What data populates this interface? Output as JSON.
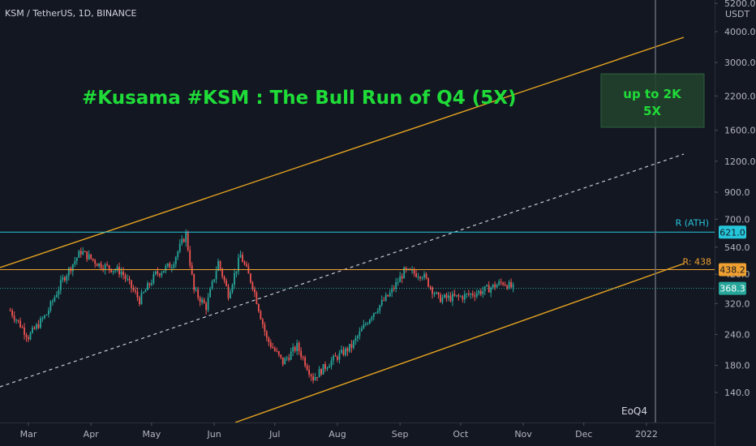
{
  "header": {
    "symbol": "KSM / TetherUS, 1D, BINANCE"
  },
  "chart_data": {
    "type": "candlestick",
    "title": "#Kusama #KSM : The Bull Run of Q4 (5X)",
    "currency_label": "USDT",
    "y_scale": "log",
    "ylim": [
      112,
      5600
    ],
    "y_ticks": [
      "5200.0",
      "4000.0",
      "3000.0",
      "2200.0",
      "1600.0",
      "1200.0",
      "900.0",
      "700.0",
      "540.0",
      "420.0",
      "320.0",
      "240.0",
      "180.0",
      "140.0"
    ],
    "x_ticks": [
      "Mar",
      "Apr",
      "May",
      "Jun",
      "Jul",
      "Aug",
      "Sep",
      "Oct",
      "Nov",
      "Dec",
      "2022"
    ],
    "price_labels": {
      "ath": "621.0",
      "resistance": "438.2",
      "last": "368.3"
    },
    "annotations": {
      "ath_label": "R (ATH)",
      "resistance_label": "R: 438",
      "target_line1": "up to 2K",
      "target_line2": "5X",
      "marker": "EoQ4"
    },
    "price_path": [
      {
        "date": "2021-02-20",
        "price": 300
      },
      {
        "date": "2021-03-01",
        "price": 235
      },
      {
        "date": "2021-03-10",
        "price": 290
      },
      {
        "date": "2021-03-18",
        "price": 400
      },
      {
        "date": "2021-03-27",
        "price": 520
      },
      {
        "date": "2021-04-05",
        "price": 460
      },
      {
        "date": "2021-04-16",
        "price": 430
      },
      {
        "date": "2021-04-25",
        "price": 330
      },
      {
        "date": "2021-05-03",
        "price": 420
      },
      {
        "date": "2021-05-11",
        "price": 460
      },
      {
        "date": "2021-05-18",
        "price": 610
      },
      {
        "date": "2021-05-22",
        "price": 360
      },
      {
        "date": "2021-05-28",
        "price": 310
      },
      {
        "date": "2021-06-03",
        "price": 470
      },
      {
        "date": "2021-06-08",
        "price": 350
      },
      {
        "date": "2021-06-14",
        "price": 500
      },
      {
        "date": "2021-06-20",
        "price": 380
      },
      {
        "date": "2021-06-27",
        "price": 230
      },
      {
        "date": "2021-07-05",
        "price": 185
      },
      {
        "date": "2021-07-12",
        "price": 215
      },
      {
        "date": "2021-07-20",
        "price": 160
      },
      {
        "date": "2021-07-28",
        "price": 185
      },
      {
        "date": "2021-08-08",
        "price": 215
      },
      {
        "date": "2021-08-18",
        "price": 290
      },
      {
        "date": "2021-08-27",
        "price": 350
      },
      {
        "date": "2021-09-03",
        "price": 430
      },
      {
        "date": "2021-09-12",
        "price": 420
      },
      {
        "date": "2021-09-20",
        "price": 335
      },
      {
        "date": "2021-10-01",
        "price": 340
      },
      {
        "date": "2021-10-12",
        "price": 360
      },
      {
        "date": "2021-10-22",
        "price": 390
      },
      {
        "date": "2021-10-27",
        "price": 368
      }
    ]
  },
  "colors": {
    "background": "#131722",
    "up": "#26a69a",
    "down": "#ef5350",
    "channel": "#e6a520",
    "ath_line": "#26c6da",
    "resistance_line": "#f0a030",
    "last_price": "#26a69a",
    "title": "#1fdc38",
    "vertical_marker": "#6a6e7a"
  }
}
